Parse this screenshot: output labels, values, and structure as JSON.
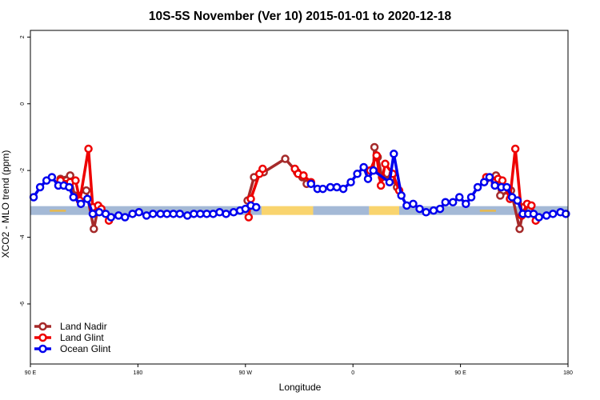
{
  "chart_data": {
    "type": "line",
    "title": "10S-5S November (Ver 10)   2015-01-01 to 2020-12-18",
    "xlabel": "Longitude",
    "ylabel": "XCO2 - MLO trend (ppm)",
    "xlim": [
      0,
      500
    ],
    "ylim": [
      -7.8,
      2.2
    ],
    "x_ticks": [
      {
        "x": 0,
        "label": "90 E"
      },
      {
        "x": 100,
        "label": "180"
      },
      {
        "x": 200,
        "label": "90 W"
      },
      {
        "x": 300,
        "label": "0"
      },
      {
        "x": 400,
        "label": "90 E"
      },
      {
        "x": 500,
        "label": "180"
      }
    ],
    "y_ticks": [
      2,
      0,
      -2,
      -4,
      -6
    ],
    "grid": false,
    "legend_position": "bottom-left",
    "surface_band": {
      "y": -3.2,
      "segments": [
        {
          "x0": 0,
          "x1": 215,
          "kind": "ocean"
        },
        {
          "x0": 215,
          "x1": 263,
          "kind": "land"
        },
        {
          "x0": 263,
          "x1": 315,
          "kind": "ocean"
        },
        {
          "x0": 315,
          "x1": 343,
          "kind": "land"
        },
        {
          "x0": 343,
          "x1": 500,
          "kind": "ocean"
        }
      ],
      "islands": [
        {
          "x0": 18,
          "x1": 33
        },
        {
          "x0": 418,
          "x1": 433
        }
      ]
    },
    "series": [
      {
        "name": "Land Nadir",
        "color": "#a52a2a",
        "points": [
          [
            28,
            -2.25
          ],
          [
            37,
            -2.15
          ],
          [
            41,
            -2.75
          ],
          [
            52,
            -2.6
          ],
          [
            59,
            -3.75
          ],
          [
            63,
            -3.1
          ],
          [
            202,
            -2.9
          ],
          [
            208,
            -2.2
          ],
          [
            217,
            -2.05
          ],
          [
            237,
            -1.65
          ],
          [
            248,
            -2.05
          ],
          [
            253,
            -2.2
          ],
          [
            257,
            -2.4
          ],
          [
            319,
            -2.0
          ],
          [
            320,
            -1.3
          ],
          [
            323,
            -1.6
          ],
          [
            327,
            -2.2
          ],
          [
            336,
            -2.2
          ],
          [
            341,
            -2.5
          ],
          [
            424,
            -2.25
          ],
          [
            433,
            -2.15
          ],
          [
            437,
            -2.75
          ],
          [
            447,
            -2.6
          ],
          [
            455,
            -3.75
          ],
          [
            459,
            -3.1
          ]
        ]
      },
      {
        "name": "Land Glint",
        "color": "#ee0000",
        "points": [
          [
            28,
            -2.3
          ],
          [
            37,
            -2.35
          ],
          [
            42,
            -2.3
          ],
          [
            46,
            -2.9
          ],
          [
            54,
            -1.35
          ],
          [
            58,
            -3.1
          ],
          [
            63,
            -3.05
          ],
          [
            66,
            -3.15
          ],
          [
            73,
            -3.5
          ],
          [
            203,
            -3.4
          ],
          [
            205,
            -2.85
          ],
          [
            213,
            -2.1
          ],
          [
            216,
            -1.95
          ],
          [
            246,
            -1.95
          ],
          [
            249,
            -2.1
          ],
          [
            254,
            -2.15
          ],
          [
            261,
            -2.35
          ],
          [
            316,
            -2.0
          ],
          [
            322,
            -1.55
          ],
          [
            326,
            -2.45
          ],
          [
            330,
            -1.8
          ],
          [
            337,
            -2.1
          ],
          [
            343,
            -2.6
          ],
          [
            424,
            -2.2
          ],
          [
            432,
            -2.35
          ],
          [
            435,
            -2.25
          ],
          [
            439,
            -2.3
          ],
          [
            446,
            -2.85
          ],
          [
            451,
            -1.35
          ],
          [
            457,
            -3.35
          ],
          [
            462,
            -3.0
          ],
          [
            466,
            -3.05
          ],
          [
            470,
            -3.5
          ]
        ]
      },
      {
        "name": "Ocean Glint",
        "color": "#0000ee",
        "points": [
          [
            3,
            -2.8
          ],
          [
            9,
            -2.5
          ],
          [
            15,
            -2.3
          ],
          [
            20,
            -2.2
          ],
          [
            26,
            -2.45
          ],
          [
            31,
            -2.45
          ],
          [
            36,
            -2.5
          ],
          [
            40,
            -2.8
          ],
          [
            47,
            -3.0
          ],
          [
            53,
            -2.85
          ],
          [
            58,
            -3.3
          ],
          [
            64,
            -3.25
          ],
          [
            70,
            -3.3
          ],
          [
            75,
            -3.4
          ],
          [
            82,
            -3.35
          ],
          [
            88,
            -3.4
          ],
          [
            95,
            -3.3
          ],
          [
            101,
            -3.25
          ],
          [
            108,
            -3.35
          ],
          [
            114,
            -3.3
          ],
          [
            121,
            -3.3
          ],
          [
            127,
            -3.3
          ],
          [
            133,
            -3.3
          ],
          [
            139,
            -3.3
          ],
          [
            146,
            -3.35
          ],
          [
            152,
            -3.3
          ],
          [
            158,
            -3.3
          ],
          [
            164,
            -3.3
          ],
          [
            170,
            -3.3
          ],
          [
            176,
            -3.25
          ],
          [
            182,
            -3.3
          ],
          [
            189,
            -3.25
          ],
          [
            195,
            -3.2
          ],
          [
            200,
            -3.15
          ],
          [
            205,
            -3.05
          ],
          [
            210,
            -3.1
          ],
          [
            261,
            -2.4
          ],
          [
            267,
            -2.55
          ],
          [
            272,
            -2.55
          ],
          [
            279,
            -2.5
          ],
          [
            285,
            -2.5
          ],
          [
            291,
            -2.55
          ],
          [
            298,
            -2.35
          ],
          [
            304,
            -2.1
          ],
          [
            310,
            -1.9
          ],
          [
            314,
            -2.25
          ],
          [
            319,
            -2.0
          ],
          [
            334,
            -2.35
          ],
          [
            338,
            -1.5
          ],
          [
            345,
            -2.75
          ],
          [
            350,
            -3.05
          ],
          [
            356,
            -3.0
          ],
          [
            362,
            -3.15
          ],
          [
            368,
            -3.25
          ],
          [
            375,
            -3.2
          ],
          [
            381,
            -3.15
          ],
          [
            386,
            -2.95
          ],
          [
            393,
            -2.95
          ],
          [
            399,
            -2.8
          ],
          [
            405,
            -3.0
          ],
          [
            410,
            -2.8
          ],
          [
            416,
            -2.5
          ],
          [
            422,
            -2.35
          ],
          [
            427,
            -2.2
          ],
          [
            432,
            -2.45
          ],
          [
            438,
            -2.5
          ],
          [
            443,
            -2.5
          ],
          [
            448,
            -2.8
          ],
          [
            453,
            -2.9
          ],
          [
            458,
            -3.3
          ],
          [
            463,
            -3.3
          ],
          [
            468,
            -3.3
          ],
          [
            473,
            -3.4
          ],
          [
            480,
            -3.35
          ],
          [
            486,
            -3.3
          ],
          [
            493,
            -3.25
          ],
          [
            498,
            -3.3
          ]
        ]
      }
    ]
  }
}
